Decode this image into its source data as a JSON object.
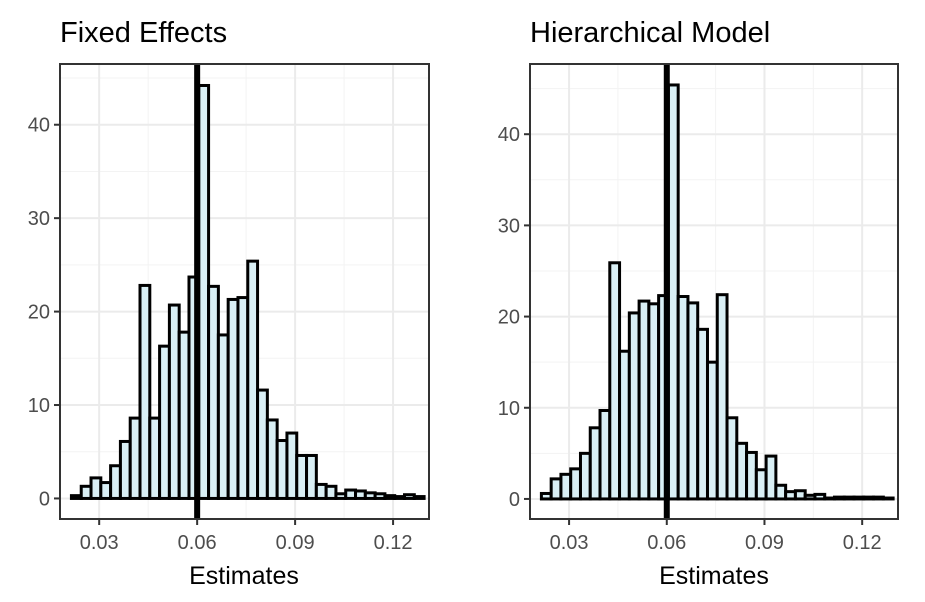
{
  "chart_data": [
    {
      "type": "bar",
      "title": "Fixed Effects",
      "xlabel": "Estimates",
      "ylabel": "",
      "xlim": [
        0.018,
        0.131
      ],
      "ylim": [
        -2.2,
        46.5
      ],
      "xticks": [
        0.03,
        0.06,
        0.09,
        0.12
      ],
      "xtick_labels": [
        "0.03",
        "0.06",
        "0.09",
        "0.12"
      ],
      "yticks": [
        0,
        10,
        20,
        30,
        40
      ],
      "ytick_labels": [
        "0",
        "10",
        "20",
        "30",
        "40"
      ],
      "grid": true,
      "bin_start": 0.0215,
      "bin_width": 0.003,
      "values": [
        0.3,
        1.3,
        2.2,
        1.7,
        3.5,
        6.1,
        8.6,
        22.8,
        8.6,
        16.3,
        20.7,
        17.8,
        23.7,
        44.2,
        22.7,
        17.5,
        21.3,
        21.5,
        25.4,
        11.6,
        8.4,
        6.2,
        7.0,
        4.6,
        4.6,
        1.5,
        1.3,
        0.5,
        0.9,
        0.8,
        0.6,
        0.5,
        0.3,
        0.2,
        0.4,
        0.2
      ],
      "vline": 0.06
    },
    {
      "type": "bar",
      "title": "Hierarchical Model",
      "xlabel": "Estimates",
      "ylabel": "",
      "xlim": [
        0.018,
        0.131
      ],
      "ylim": [
        -2.2,
        47.7
      ],
      "xticks": [
        0.03,
        0.06,
        0.09,
        0.12
      ],
      "xtick_labels": [
        "0.03",
        "0.06",
        "0.09",
        "0.12"
      ],
      "yticks": [
        0,
        10,
        20,
        30,
        40
      ],
      "ytick_labels": [
        "0",
        "10",
        "20",
        "30",
        "40"
      ],
      "grid": true,
      "bin_start": 0.0215,
      "bin_width": 0.003,
      "values": [
        0.6,
        2.2,
        2.7,
        3.3,
        5.0,
        7.8,
        9.7,
        25.9,
        16.2,
        20.4,
        21.7,
        21.4,
        22.3,
        45.4,
        22.2,
        21.5,
        18.6,
        15.0,
        22.4,
        8.9,
        6.1,
        5.1,
        3.2,
        4.7,
        1.5,
        0.8,
        0.9,
        0.4,
        0.5,
        0.1,
        0.2,
        0.2,
        0.2,
        0.2,
        0.2,
        0.1
      ],
      "vline": 0.06
    }
  ]
}
